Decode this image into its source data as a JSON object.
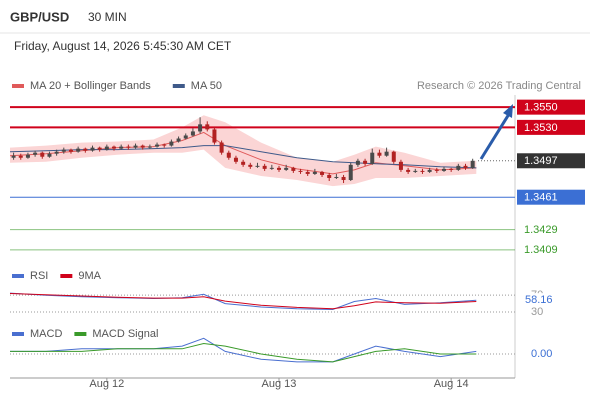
{
  "header": {
    "symbol": "GBP/USD",
    "interval": "30 MIN",
    "datetime": "Friday, August 14, 2026 5:45:30 AM CET"
  },
  "chart_data": [
    {
      "type": "candlestick",
      "source": "Research © 2026 Trading Central",
      "xlim": [
        0,
        70.4
      ],
      "xticks": [
        {
          "value": 13.5,
          "label": "Aug 12"
        },
        {
          "value": 37.5,
          "label": "Aug 13"
        },
        {
          "value": 61.5,
          "label": "Aug 14"
        }
      ],
      "ylim": [
        1.3394,
        1.3562
      ],
      "candles": {
        "up_color": "#4a4a4a",
        "down_color": "#b22222",
        "x": [
          0.5,
          1.5,
          2.5,
          3.5,
          4.5,
          5.5,
          6.5,
          7.5,
          8.5,
          9.5,
          10.5,
          11.5,
          12.5,
          13.5,
          14.5,
          15.5,
          16.5,
          17.5,
          18.5,
          19.5,
          20.5,
          21.5,
          22.5,
          23.5,
          24.5,
          25.5,
          26.5,
          27.5,
          28.5,
          29.5,
          30.5,
          31.5,
          32.5,
          33.5,
          34.5,
          35.5,
          36.5,
          37.5,
          38.5,
          39.5,
          40.5,
          41.5,
          42.5,
          43.5,
          44.5,
          45.5,
          46.5,
          47.5,
          48.5,
          49.5,
          50.5,
          51.5,
          52.5,
          53.5,
          54.5,
          55.5,
          56.5,
          57.5,
          58.5,
          59.5,
          60.5,
          61.5,
          62.5,
          63.5,
          64.5
        ],
        "ohlc": [
          [
            1.35,
            1.3505,
            1.3498,
            1.3502
          ],
          [
            1.3502,
            1.3504,
            1.3498,
            1.35
          ],
          [
            1.35,
            1.3505,
            1.3499,
            1.3503
          ],
          [
            1.3503,
            1.3507,
            1.3501,
            1.3505
          ],
          [
            1.3505,
            1.3506,
            1.3499,
            1.3501
          ],
          [
            1.3501,
            1.3506,
            1.35,
            1.3504
          ],
          [
            1.3504,
            1.3508,
            1.3502,
            1.3506
          ],
          [
            1.3506,
            1.351,
            1.3504,
            1.3508
          ],
          [
            1.3508,
            1.3509,
            1.3504,
            1.3506
          ],
          [
            1.3506,
            1.3511,
            1.3505,
            1.3509
          ],
          [
            1.3509,
            1.351,
            1.3505,
            1.3507
          ],
          [
            1.3507,
            1.3512,
            1.3506,
            1.351
          ],
          [
            1.351,
            1.3511,
            1.3506,
            1.3508
          ],
          [
            1.3508,
            1.3513,
            1.3507,
            1.3511
          ],
          [
            1.3511,
            1.3512,
            1.3507,
            1.3509
          ],
          [
            1.3509,
            1.3513,
            1.3508,
            1.3511
          ],
          [
            1.3511,
            1.3513,
            1.3508,
            1.351
          ],
          [
            1.351,
            1.3514,
            1.3509,
            1.3512
          ],
          [
            1.3512,
            1.3513,
            1.3508,
            1.351
          ],
          [
            1.351,
            1.3513,
            1.3509,
            1.3511
          ],
          [
            1.3511,
            1.3515,
            1.351,
            1.3513
          ],
          [
            1.3513,
            1.3514,
            1.351,
            1.3512
          ],
          [
            1.3512,
            1.3518,
            1.3511,
            1.3516
          ],
          [
            1.3516,
            1.3521,
            1.3515,
            1.3519
          ],
          [
            1.3519,
            1.3524,
            1.3518,
            1.3522
          ],
          [
            1.3522,
            1.3529,
            1.3521,
            1.3526
          ],
          [
            1.3526,
            1.354,
            1.3524,
            1.3533
          ],
          [
            1.3533,
            1.3536,
            1.3526,
            1.3528
          ],
          [
            1.3528,
            1.353,
            1.3513,
            1.3515
          ],
          [
            1.3515,
            1.3517,
            1.3503,
            1.3505
          ],
          [
            1.3505,
            1.3507,
            1.3498,
            1.35
          ],
          [
            1.35,
            1.3502,
            1.3494,
            1.3496
          ],
          [
            1.3496,
            1.3498,
            1.3491,
            1.3493
          ],
          [
            1.3493,
            1.3495,
            1.3489,
            1.3491
          ],
          [
            1.3491,
            1.3495,
            1.349,
            1.3492
          ],
          [
            1.3492,
            1.3494,
            1.3487,
            1.3489
          ],
          [
            1.3489,
            1.3493,
            1.3488,
            1.349
          ],
          [
            1.349,
            1.3492,
            1.3486,
            1.3488
          ],
          [
            1.3488,
            1.3493,
            1.3487,
            1.349
          ],
          [
            1.349,
            1.3491,
            1.3485,
            1.3487
          ],
          [
            1.3487,
            1.3489,
            1.3484,
            1.3486
          ],
          [
            1.3486,
            1.3488,
            1.3482,
            1.3484
          ],
          [
            1.3484,
            1.3489,
            1.3483,
            1.3486
          ],
          [
            1.3486,
            1.3487,
            1.3481,
            1.3483
          ],
          [
            1.3483,
            1.3485,
            1.3477,
            1.348
          ],
          [
            1.348,
            1.3484,
            1.3479,
            1.3481
          ],
          [
            1.3481,
            1.3483,
            1.3475,
            1.3478
          ],
          [
            1.3478,
            1.3495,
            1.3477,
            1.3493
          ],
          [
            1.3493,
            1.3499,
            1.3491,
            1.3497
          ],
          [
            1.3497,
            1.3499,
            1.3492,
            1.3494
          ],
          [
            1.3494,
            1.3509,
            1.3493,
            1.3505
          ],
          [
            1.3505,
            1.3508,
            1.35,
            1.3502
          ],
          [
            1.3502,
            1.351,
            1.3501,
            1.3506
          ],
          [
            1.3506,
            1.3507,
            1.3494,
            1.3496
          ],
          [
            1.3496,
            1.3498,
            1.3486,
            1.3488
          ],
          [
            1.3488,
            1.349,
            1.3484,
            1.3486
          ],
          [
            1.3486,
            1.3489,
            1.3485,
            1.3487
          ],
          [
            1.3487,
            1.3489,
            1.3484,
            1.3486
          ],
          [
            1.3486,
            1.349,
            1.3485,
            1.3488
          ],
          [
            1.3488,
            1.349,
            1.3485,
            1.3487
          ],
          [
            1.3487,
            1.3491,
            1.3486,
            1.3489
          ],
          [
            1.3489,
            1.349,
            1.3486,
            1.3488
          ],
          [
            1.3488,
            1.3494,
            1.3487,
            1.3492
          ],
          [
            1.3492,
            1.3494,
            1.3488,
            1.349
          ],
          [
            1.349,
            1.3499,
            1.3489,
            1.3497
          ]
        ]
      },
      "series_x": [
        0,
        5,
        10,
        15,
        20,
        24,
        27,
        30,
        35,
        40,
        45,
        48,
        51,
        55,
        60,
        65
      ],
      "series": [
        {
          "name": "MA 20 + Bollinger Bands",
          "color": "#e05a5a",
          "band_color": "#fbd5d5",
          "values": [
            1.3502,
            1.3504,
            1.3507,
            1.351,
            1.3511,
            1.3517,
            1.3525,
            1.3512,
            1.3498,
            1.3489,
            1.3484,
            1.3488,
            1.3495,
            1.3492,
            1.3488,
            1.349
          ],
          "upper": [
            1.351,
            1.3512,
            1.3515,
            1.3516,
            1.3518,
            1.353,
            1.3542,
            1.3535,
            1.3515,
            1.35,
            1.3496,
            1.3503,
            1.3511,
            1.3505,
            1.3495,
            1.3497
          ],
          "lower": [
            1.3495,
            1.3496,
            1.35,
            1.3503,
            1.3505,
            1.3505,
            1.3508,
            1.349,
            1.3482,
            1.3478,
            1.3472,
            1.3474,
            1.348,
            1.348,
            1.3482,
            1.3484
          ]
        },
        {
          "name": "MA 50",
          "color": "#3f5a8a",
          "values": [
            1.3506,
            1.3507,
            1.3508,
            1.3508,
            1.3509,
            1.351,
            1.3512,
            1.3512,
            1.3506,
            1.35,
            1.3496,
            1.3495,
            1.3494,
            1.3493,
            1.3491,
            1.349
          ]
        }
      ],
      "levels": [
        {
          "value": 1.355,
          "label": "1.3550",
          "color": "#d0021b",
          "style": "box"
        },
        {
          "value": 1.353,
          "label": "1.3530",
          "color": "#d0021b",
          "style": "box"
        },
        {
          "value": 1.3497,
          "label": "1.3497",
          "color": "#333333",
          "style": "current"
        },
        {
          "value": 1.3461,
          "label": "1.3461",
          "color": "#3b6fd4",
          "style": "box"
        },
        {
          "value": 1.3429,
          "label": "1.3429",
          "color": "#3a9a2a",
          "style": "text"
        },
        {
          "value": 1.3409,
          "label": "1.3409",
          "color": "#3a9a2a",
          "style": "text"
        }
      ]
    },
    {
      "type": "line",
      "x": [
        0,
        5,
        10,
        15,
        20,
        24,
        27,
        30,
        35,
        40,
        45,
        48,
        51,
        55,
        60,
        65
      ],
      "xlim": [
        0,
        70.4
      ],
      "ylim": [
        0,
        100
      ],
      "yticks": [
        30,
        70
      ],
      "series": [
        {
          "name": "RSI",
          "color": "#4a6fd0",
          "values": [
            75,
            70,
            66,
            64,
            62,
            64,
            72,
            50,
            42,
            38,
            36,
            55,
            62,
            48,
            52,
            58.16
          ]
        },
        {
          "name": "9MA",
          "color": "#d0021b",
          "values": [
            74,
            71,
            68,
            65,
            63,
            63,
            66,
            56,
            46,
            41,
            38,
            45,
            54,
            52,
            51,
            55
          ]
        }
      ]
    },
    {
      "type": "line",
      "x": [
        0,
        5,
        10,
        15,
        20,
        24,
        27,
        30,
        35,
        40,
        45,
        48,
        51,
        55,
        60,
        65
      ],
      "xlim": [
        0,
        70.4
      ],
      "ylim": [
        -0.0008,
        0.0008
      ],
      "yticks": [
        {
          "value": 0,
          "label": "0.00"
        }
      ],
      "series": [
        {
          "name": "MACD",
          "color": "#4a6fd0",
          "values": [
            0.0001,
            0.0001,
            0.0002,
            0.0002,
            0.0002,
            0.0003,
            0.0006,
            0.0001,
            -0.0002,
            -0.0003,
            -0.0003,
            0,
            0.0003,
            0.0001,
            -0.0001,
            0.0001
          ]
        },
        {
          "name": "MACD Signal",
          "color": "#3a9a2a",
          "values": [
            0.0001,
            0.0001,
            0.0001,
            0.0002,
            0.0002,
            0.0002,
            0.0004,
            0.0003,
            0,
            -0.0002,
            -0.0003,
            -0.0001,
            0.0001,
            0.0002,
            0,
            0
          ]
        }
      ]
    }
  ]
}
